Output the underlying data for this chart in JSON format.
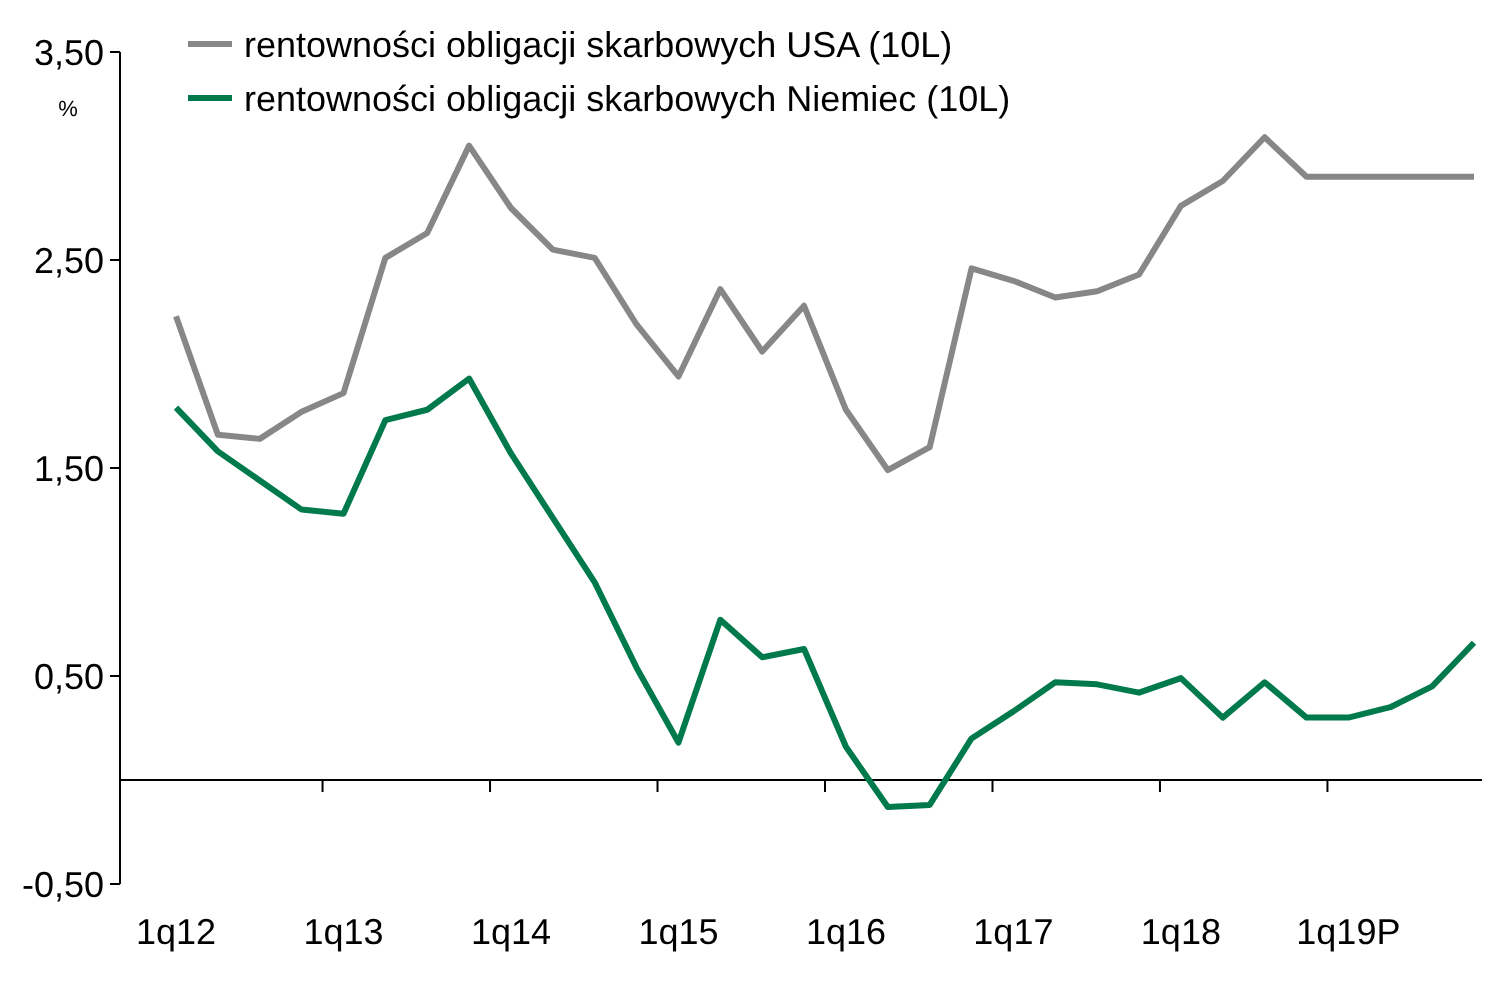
{
  "chart_data": {
    "type": "line",
    "ylabel": "%",
    "legend": "top",
    "grid": false,
    "categories": [
      "1q12",
      null,
      null,
      null,
      "1q13",
      null,
      null,
      null,
      "1q14",
      null,
      null,
      null,
      "1q15",
      null,
      null,
      null,
      "1q16",
      null,
      null,
      null,
      "1q17",
      null,
      null,
      null,
      "1q18",
      null,
      null,
      null,
      "1q19P",
      null,
      null,
      null
    ],
    "ylim": [
      -0.5,
      3.5
    ],
    "yticks": [
      {
        "value": -0.5,
        "label": "-0,50"
      },
      {
        "value": 0.5,
        "label": "0,50"
      },
      {
        "value": 1.5,
        "label": "1,50"
      },
      {
        "value": 2.5,
        "label": "2,50"
      },
      {
        "value": 3.5,
        "label": "3,50"
      }
    ],
    "series": [
      {
        "name": "rentowności obligacji skarbowych USA (10L)",
        "color": "#878787",
        "values": [
          2.23,
          1.66,
          1.64,
          1.77,
          1.86,
          2.51,
          2.63,
          3.05,
          2.75,
          2.55,
          2.51,
          2.19,
          1.94,
          2.36,
          2.06,
          2.28,
          1.78,
          1.49,
          1.6,
          2.46,
          2.4,
          2.32,
          2.35,
          2.43,
          2.76,
          2.88,
          3.09,
          2.9,
          2.9,
          2.9,
          2.9,
          2.9
        ]
      },
      {
        "name": "rentowności obligacji skarbowych Niemiec (10L)",
        "color": "#007a4d",
        "values": [
          1.79,
          1.58,
          1.44,
          1.3,
          1.28,
          1.73,
          1.78,
          1.93,
          1.57,
          1.26,
          0.95,
          0.54,
          0.18,
          0.77,
          0.59,
          0.63,
          0.16,
          -0.13,
          -0.12,
          0.2,
          0.33,
          0.47,
          0.46,
          0.42,
          0.49,
          0.3,
          0.47,
          0.3,
          0.3,
          0.35,
          0.45,
          0.66
        ]
      }
    ]
  }
}
